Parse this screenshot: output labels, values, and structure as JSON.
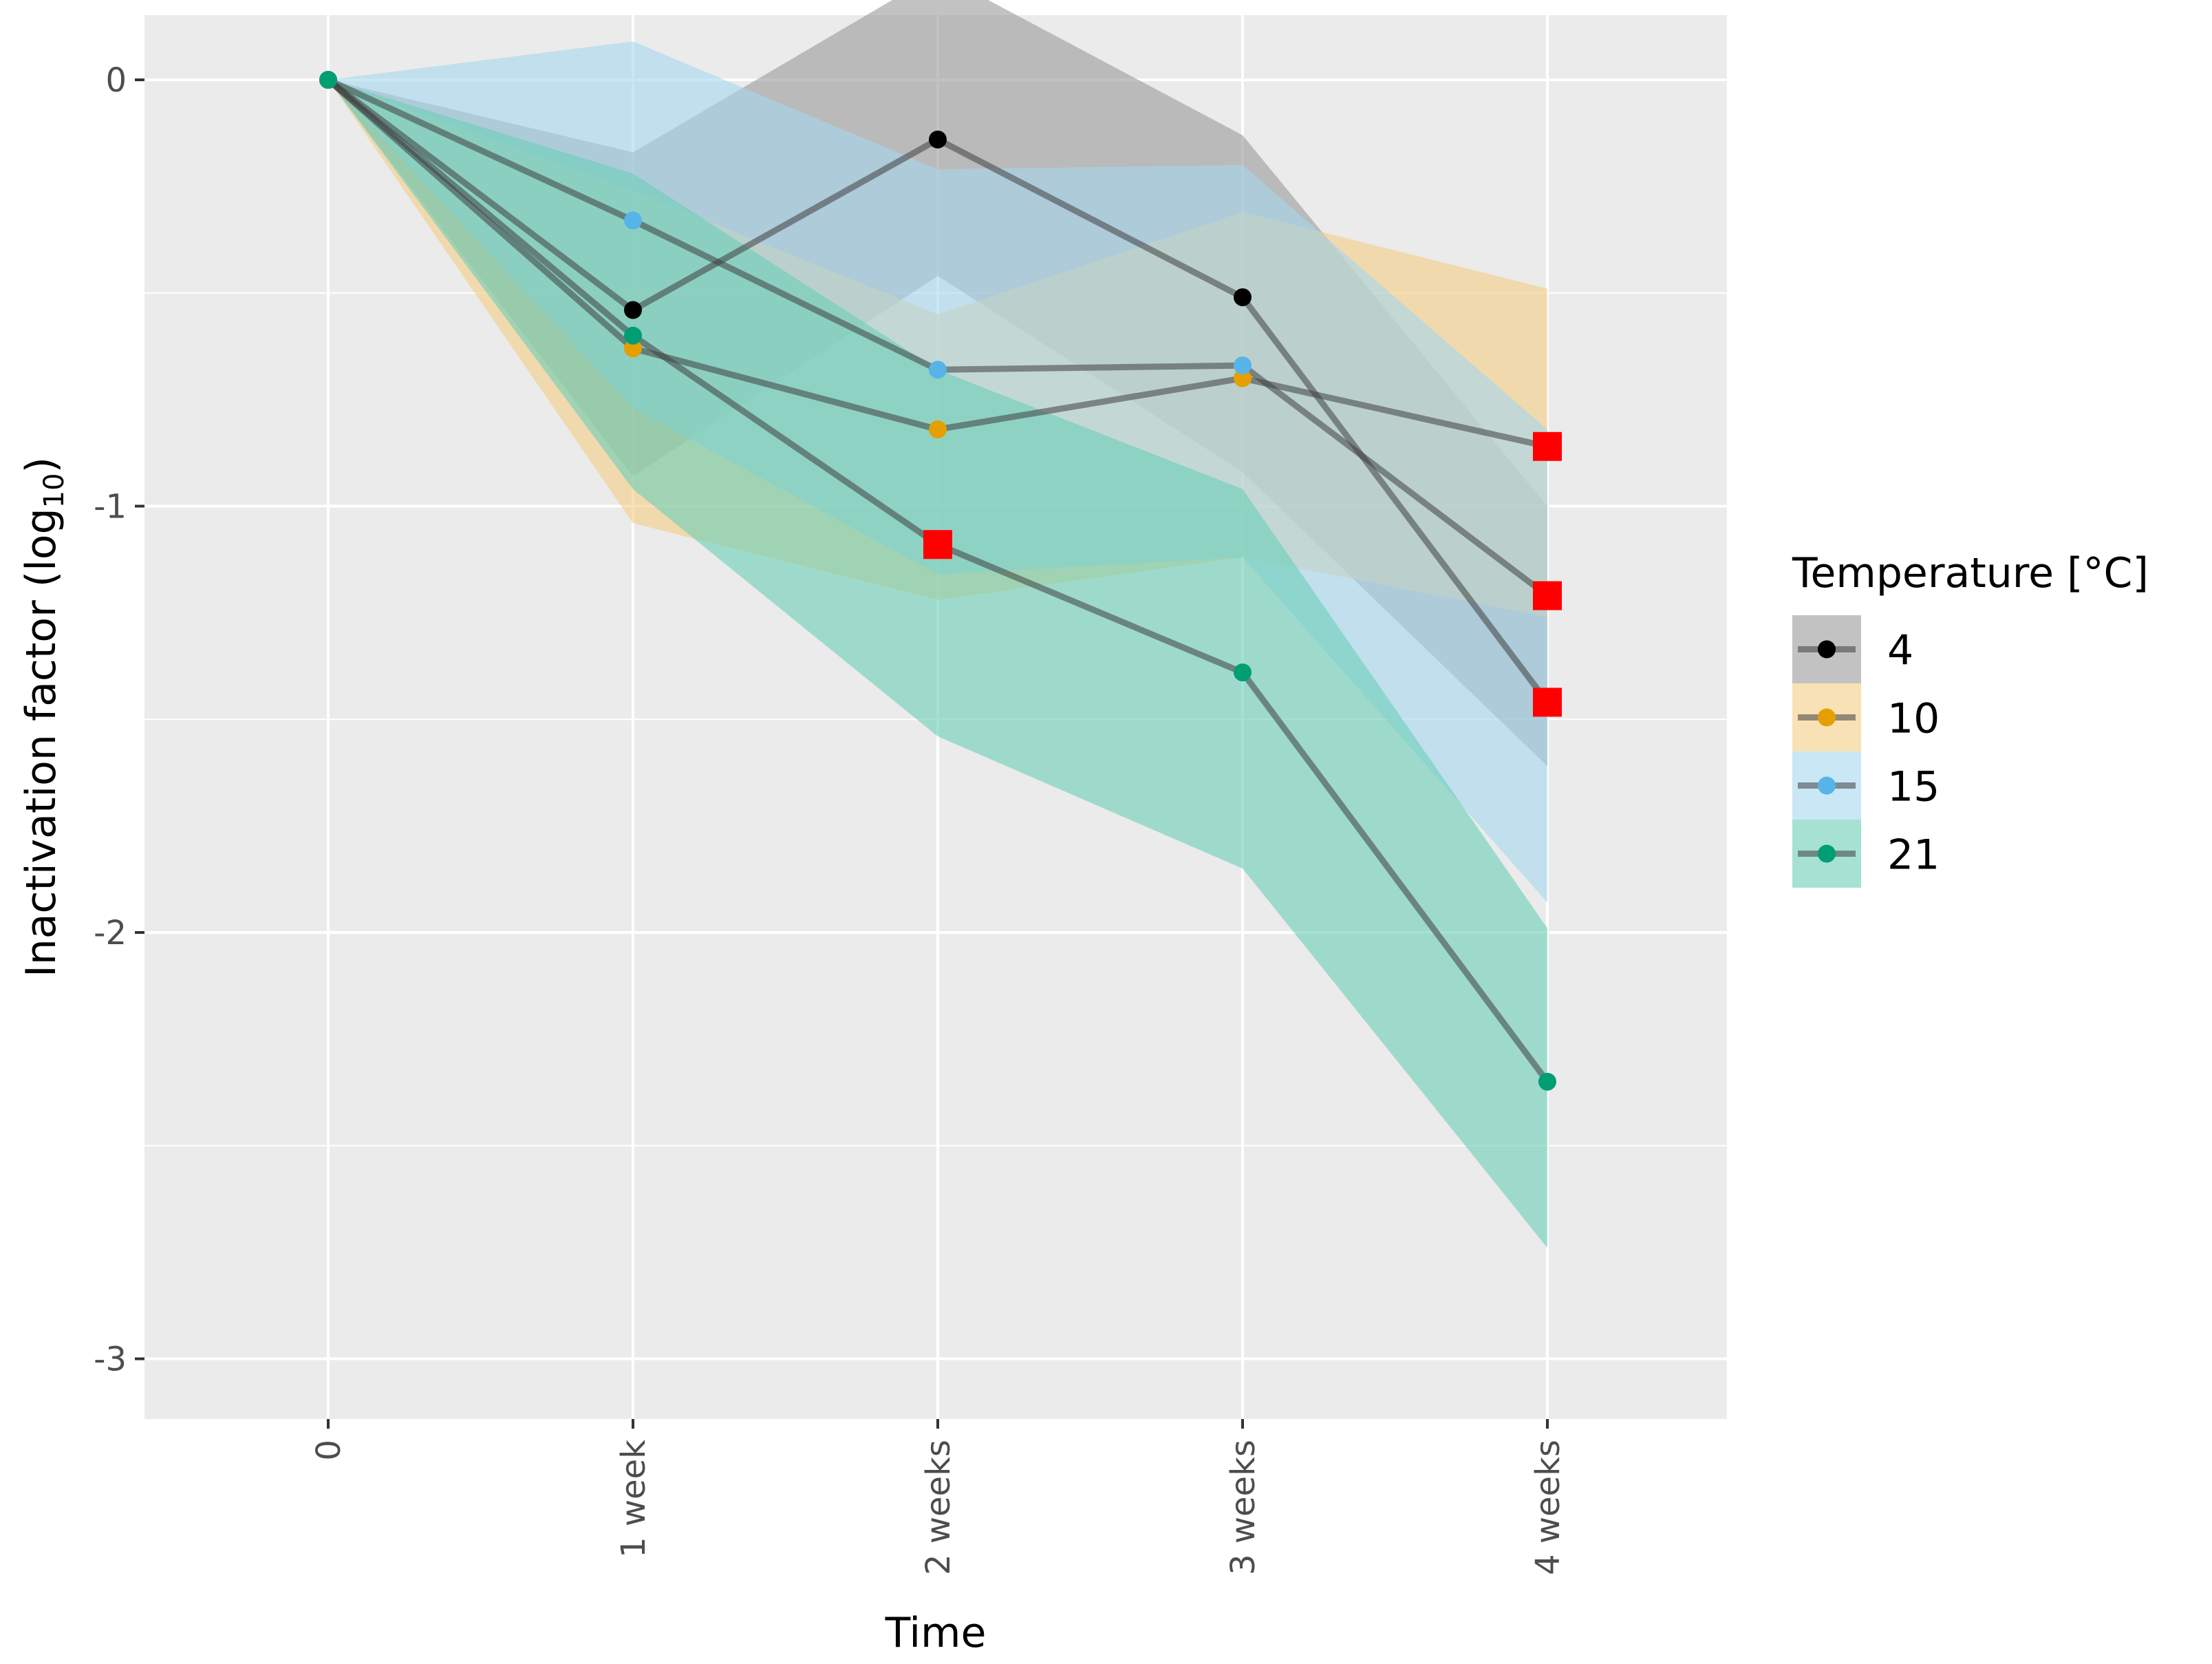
{
  "chart_data": {
    "type": "line",
    "xlabel": "Time",
    "ylabel": "Inactivation factor (log",
    "ylabel_subscript": "10",
    "ylabel_close": ")",
    "categories": [
      "0",
      "1 week",
      "2 weeks",
      "3 weeks",
      "4 weeks"
    ],
    "ylim": [
      -3.15,
      0.15
    ],
    "yticks": [
      0,
      -1,
      -2,
      -3
    ],
    "ytick_labels": [
      "0",
      "-1",
      "-2",
      "-3"
    ],
    "legend_title": "Temperature [°C]",
    "legend_position": "right",
    "grid": true,
    "series": [
      {
        "name": "4",
        "color": "#000000",
        "ribbon_color": "#999999",
        "values": [
          0,
          -0.54,
          -0.14,
          -0.51,
          -1.46
        ],
        "ribbon_upper": [
          0,
          -0.17,
          0.25,
          -0.13,
          -1.0
        ],
        "ribbon_lower": [
          0,
          -0.93,
          -0.46,
          -0.92,
          -1.61
        ],
        "flagged": [
          false,
          false,
          false,
          false,
          true
        ]
      },
      {
        "name": "10",
        "color": "#E69F00",
        "ribbon_color": "#F5CD86",
        "values": [
          0,
          -0.63,
          -0.82,
          -0.7,
          -0.86
        ],
        "ribbon_upper": [
          0,
          -0.26,
          -0.55,
          -0.31,
          -0.49
        ],
        "ribbon_lower": [
          0,
          -1.04,
          -1.22,
          -1.12,
          -1.26
        ],
        "flagged": [
          false,
          false,
          false,
          false,
          true
        ]
      },
      {
        "name": "15",
        "color": "#56B4E9",
        "ribbon_color": "#A5D7EE",
        "values": [
          0,
          -0.33,
          -0.68,
          -0.67,
          -1.21
        ],
        "ribbon_upper": [
          0,
          0.09,
          -0.21,
          -0.2,
          -0.82
        ],
        "ribbon_lower": [
          0,
          -0.77,
          -1.16,
          -1.12,
          -1.93
        ],
        "flagged": [
          false,
          false,
          false,
          false,
          true
        ]
      },
      {
        "name": "21",
        "color": "#009E73",
        "ribbon_color": "#6ACFB8",
        "values": [
          0,
          -0.6,
          -1.09,
          -1.39,
          -2.35
        ],
        "ribbon_upper": [
          0,
          -0.22,
          -0.68,
          -0.96,
          -1.99
        ],
        "ribbon_lower": [
          0,
          -0.96,
          -1.54,
          -1.85,
          -2.74
        ],
        "flagged": [
          false,
          false,
          true,
          false,
          false
        ]
      }
    ]
  }
}
